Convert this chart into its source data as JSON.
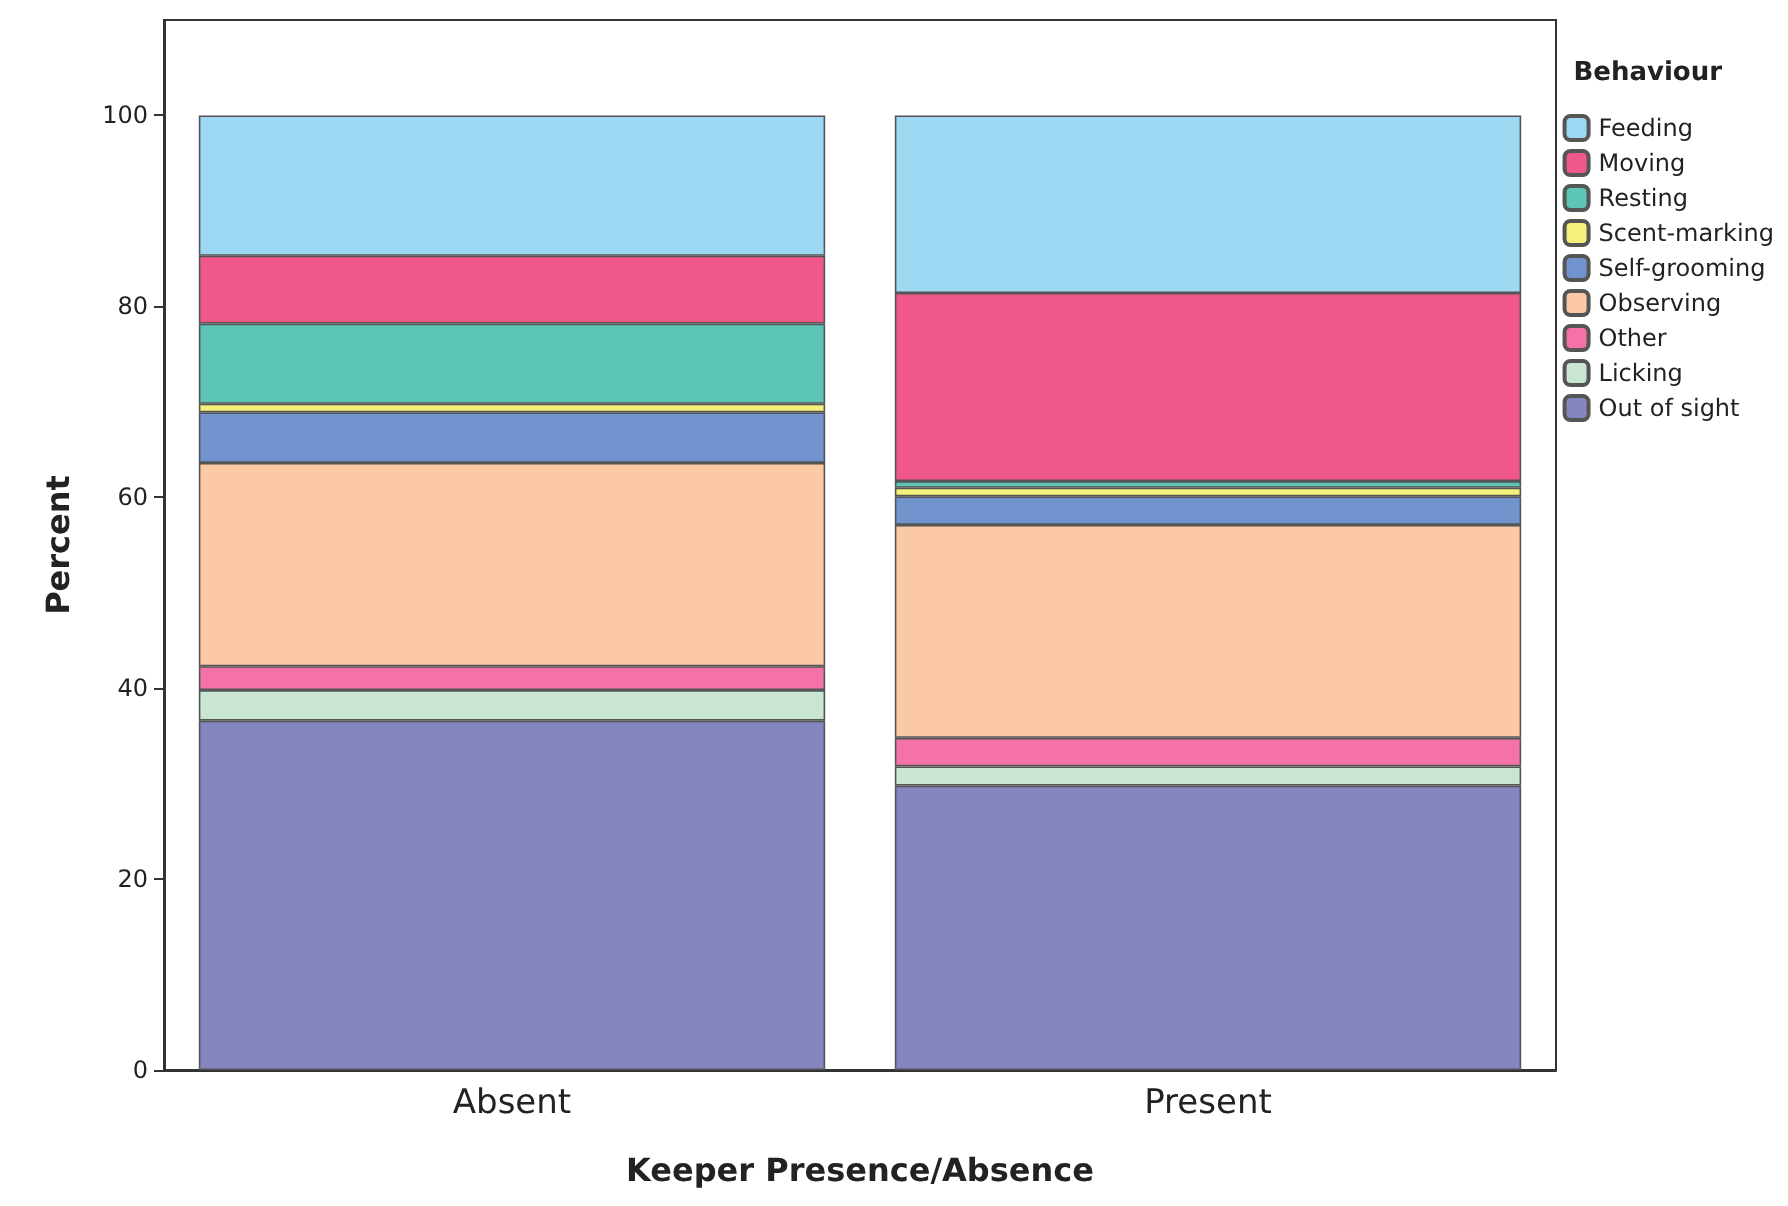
{
  "chart_data": {
    "type": "bar",
    "stacked": true,
    "xlabel": "Keeper Presence/Absence",
    "ylabel": "Percent",
    "legend_title": "Behaviour",
    "legend": "right",
    "grid": false,
    "categories": [
      "Absent",
      "Present"
    ],
    "ylim": [
      0,
      110
    ],
    "yticks": [
      0,
      20,
      40,
      60,
      80,
      100
    ],
    "series": [
      {
        "name": "Out of sight",
        "color": "#8585c0",
        "values": [
          36.6,
          29.8
        ]
      },
      {
        "name": "Licking",
        "color": "#c8e6d2",
        "values": [
          3.2,
          2.0
        ]
      },
      {
        "name": "Other",
        "color": "#f472a8",
        "values": [
          2.5,
          3.0
        ]
      },
      {
        "name": "Observing",
        "color": "#fbc9a4",
        "values": [
          21.3,
          22.3
        ]
      },
      {
        "name": "Self-grooming",
        "color": "#7194cf",
        "values": [
          5.3,
          3.0
        ]
      },
      {
        "name": "Scent-marking",
        "color": "#f5f07a",
        "values": [
          0.9,
          0.9
        ]
      },
      {
        "name": "Resting",
        "color": "#5cc5b5",
        "values": [
          8.4,
          0.7
        ]
      },
      {
        "name": "Moving",
        "color": "#f0588a",
        "values": [
          7.1,
          19.7
        ]
      },
      {
        "name": "Feeding",
        "color": "#9dd9f3",
        "values": [
          14.7,
          18.6
        ]
      }
    ]
  }
}
